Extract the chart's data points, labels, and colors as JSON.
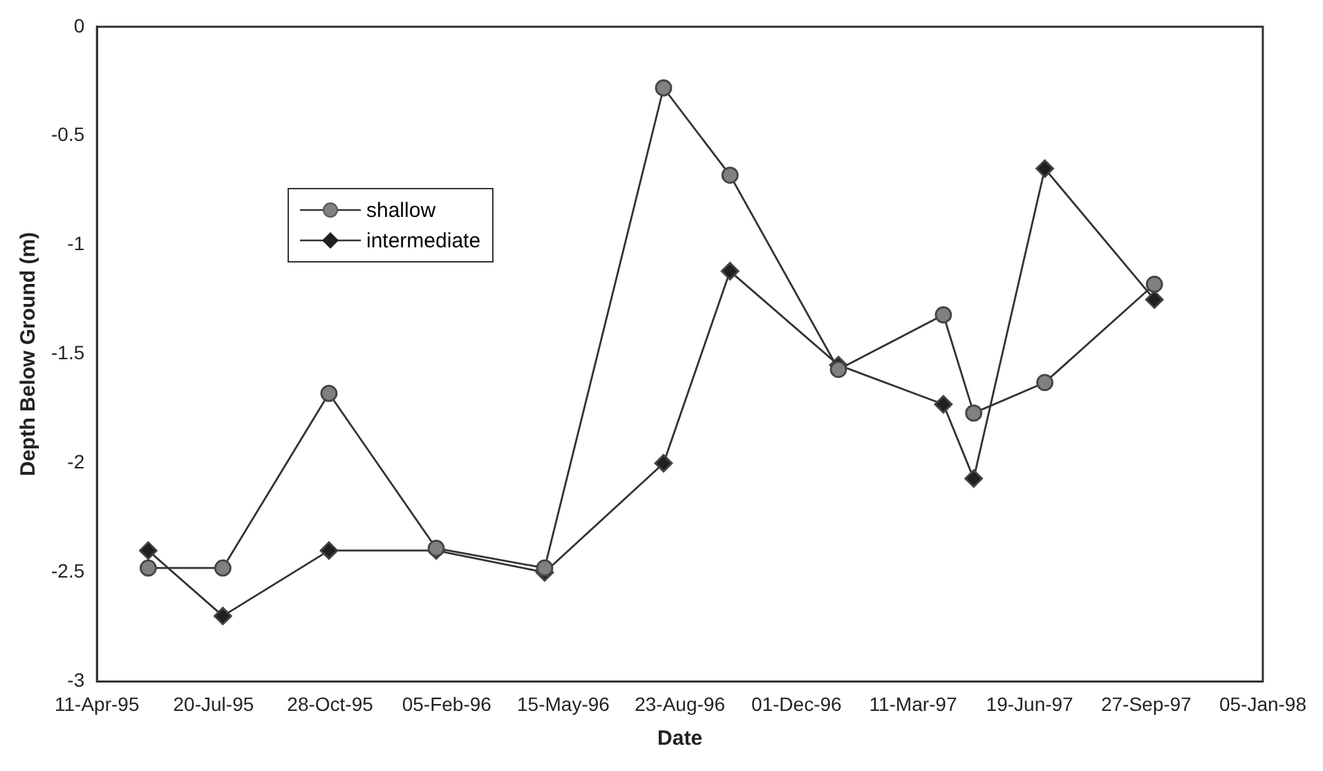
{
  "chart_data": {
    "type": "line",
    "xlabel": "Date",
    "ylabel": "Depth Below Ground (m)",
    "x": [
      "1995-05-25",
      "1995-07-28",
      "1995-10-27",
      "1996-01-27",
      "1996-04-29",
      "1996-08-09",
      "1996-10-05",
      "1997-01-06",
      "1997-04-06",
      "1997-05-02",
      "1997-07-02",
      "1997-10-04"
    ],
    "series": [
      {
        "name": "shallow",
        "color": "#808080",
        "marker": "circle",
        "values": [
          -2.48,
          -2.48,
          -1.68,
          -2.39,
          -2.48,
          -0.28,
          -0.68,
          -1.57,
          -1.32,
          -1.77,
          -1.63,
          -1.18
        ]
      },
      {
        "name": "intermediate",
        "color": "#202020",
        "marker": "diamond",
        "values": [
          -2.4,
          -2.7,
          -2.4,
          -2.4,
          -2.5,
          -2.0,
          -1.12,
          -1.55,
          -1.73,
          -2.07,
          -0.65,
          -1.25
        ]
      }
    ],
    "xlim": [
      "1995-04-11",
      "1998-01-05"
    ],
    "xticks": [
      {
        "value": "1995-04-11",
        "label": "11-Apr-95"
      },
      {
        "value": "1995-07-20",
        "label": "20-Jul-95"
      },
      {
        "value": "1995-10-28",
        "label": "28-Oct-95"
      },
      {
        "value": "1996-02-05",
        "label": "05-Feb-96"
      },
      {
        "value": "1996-05-15",
        "label": "15-May-96"
      },
      {
        "value": "1996-08-23",
        "label": "23-Aug-96"
      },
      {
        "value": "1996-12-01",
        "label": "01-Dec-96"
      },
      {
        "value": "1997-03-11",
        "label": "11-Mar-97"
      },
      {
        "value": "1997-06-19",
        "label": "19-Jun-97"
      },
      {
        "value": "1997-09-27",
        "label": "27-Sep-97"
      },
      {
        "value": "1998-01-05",
        "label": "05-Jan-98"
      }
    ],
    "ylim": [
      -3,
      0
    ],
    "yticks": [
      -3,
      -2.5,
      -2,
      -1.5,
      -1,
      -0.5,
      0
    ],
    "grid": false,
    "legend": "top left",
    "line_style": "solid"
  }
}
